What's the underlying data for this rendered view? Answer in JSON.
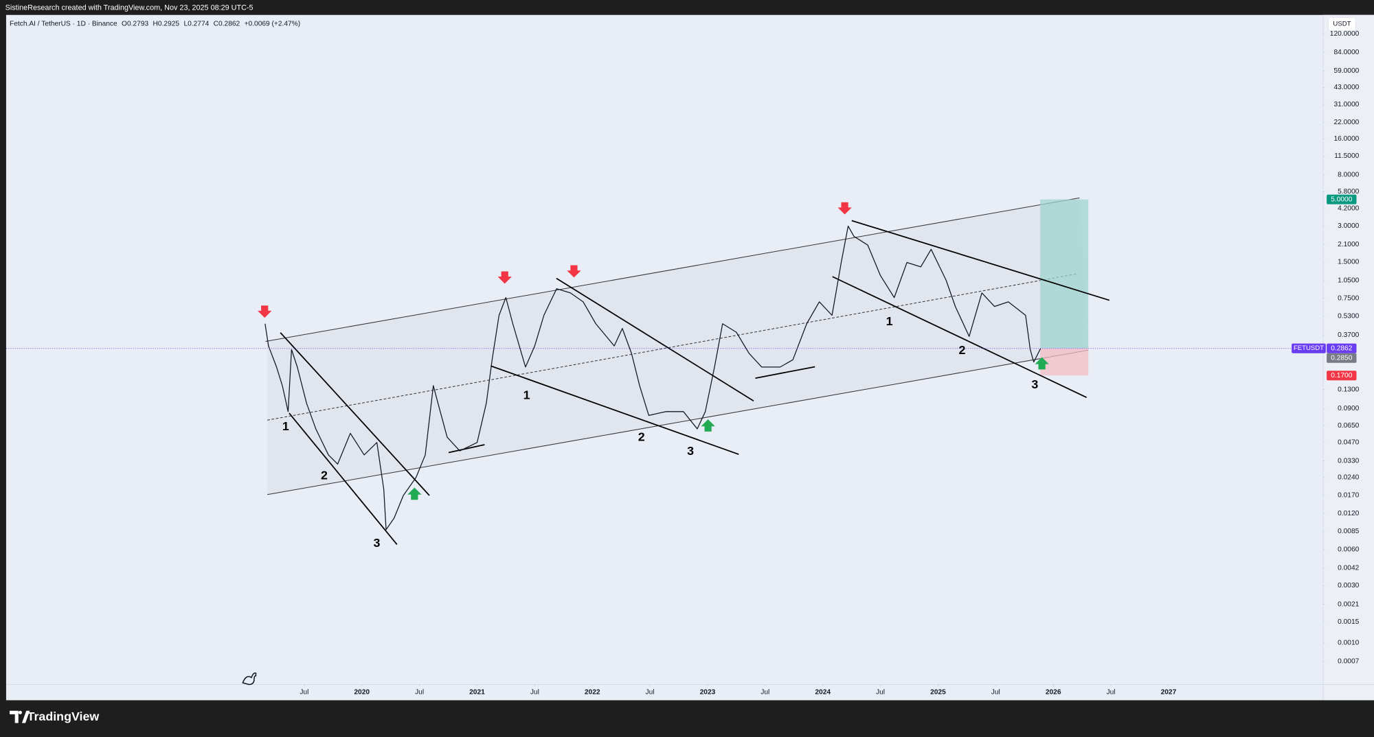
{
  "header": {
    "title": "SistineResearch created with TradingView.com, Nov 23, 2025 08:29 UTC-5"
  },
  "legend": {
    "symbol": "Fetch.AI / TetherUS · 1D · Binance",
    "ohlc": [
      {
        "label": "O",
        "value": 0.2793
      },
      {
        "label": "H",
        "value": 0.2925
      },
      {
        "label": "L",
        "value": 0.2774
      },
      {
        "label": "C",
        "value": 0.2862
      }
    ],
    "change": "+0.0069 (+2.47%)"
  },
  "chart_data": {
    "type": "line",
    "log_scale": true,
    "grid": false,
    "currency": "USDT",
    "symbol_tag": "FETUSDT",
    "xlim": [
      2016.913,
      2028.342
    ],
    "xticks": [
      {
        "value": 2019.5,
        "label": "Jul"
      },
      2020,
      {
        "value": 2020.5,
        "label": "Jul"
      },
      2021,
      {
        "value": 2021.5,
        "label": "Jul"
      },
      2022,
      {
        "value": 2022.5,
        "label": "Jul"
      },
      2023,
      {
        "value": 2023.5,
        "label": "Jul"
      },
      2024,
      {
        "value": 2024.5,
        "label": "Jul"
      },
      2025,
      {
        "value": 2025.5,
        "label": "Jul"
      },
      2026,
      {
        "value": 2026.5,
        "label": "Jul"
      },
      2027
    ],
    "ylim": [
      0.00045,
      173
    ],
    "yticks": [
      {
        "value": 120,
        "label": "120.0000"
      },
      {
        "value": 84,
        "label": "84.0000"
      },
      {
        "value": 59,
        "label": "59.0000"
      },
      {
        "value": 43,
        "label": "43.0000"
      },
      {
        "value": 31,
        "label": "31.0000"
      },
      {
        "value": 22,
        "label": "22.0000"
      },
      {
        "value": 16,
        "label": "16.0000"
      },
      {
        "value": 11.5,
        "label": "11.5000"
      },
      {
        "value": 8,
        "label": "8.0000"
      },
      {
        "value": 5.8,
        "label": "5.8000"
      },
      {
        "value": 4.2,
        "label": "4.2000"
      },
      {
        "value": 3,
        "label": "3.0000"
      },
      {
        "value": 2.1,
        "label": "2.1000"
      },
      {
        "value": 1.5,
        "label": "1.5000"
      },
      {
        "value": 1.05,
        "label": "1.0500"
      },
      {
        "value": 0.75,
        "label": "0.7500"
      },
      {
        "value": 0.53,
        "label": "0.5300"
      },
      {
        "value": 0.37,
        "label": "0.3700"
      },
      {
        "value": 0.13,
        "label": "0.1300"
      },
      {
        "value": 0.09,
        "label": "0.0900"
      },
      {
        "value": 0.065,
        "label": "0.0650"
      },
      {
        "value": 0.047,
        "label": "0.0470"
      },
      {
        "value": 0.033,
        "label": "0.0330"
      },
      {
        "value": 0.024,
        "label": "0.0240"
      },
      {
        "value": 0.017,
        "label": "0.0170"
      },
      {
        "value": 0.012,
        "label": "0.0120"
      },
      {
        "value": 0.0085,
        "label": "0.0085"
      },
      {
        "value": 0.006,
        "label": "0.0060"
      },
      {
        "value": 0.0042,
        "label": "0.0042"
      },
      {
        "value": 0.003,
        "label": "0.0030"
      },
      {
        "value": 0.0021,
        "label": "0.0021"
      },
      {
        "value": 0.0015,
        "label": "0.0015"
      },
      {
        "value": 0.001,
        "label": "0.0010"
      },
      {
        "value": 0.0007,
        "label": "0.0007"
      }
    ],
    "series": [
      {
        "name": "FETUSDT",
        "color": "#131722",
        "x": [
          2019.16,
          2019.19,
          2019.26,
          2019.31,
          2019.36,
          2019.39,
          2019.44,
          2019.52,
          2019.6,
          2019.71,
          2019.79,
          2019.9,
          2020.02,
          2020.13,
          2020.19,
          2020.21,
          2020.28,
          2020.36,
          2020.47,
          2020.55,
          2020.62,
          2020.66,
          2020.74,
          2020.85,
          2021.0,
          2021.08,
          2021.13,
          2021.19,
          2021.25,
          2021.31,
          2021.42,
          2021.5,
          2021.58,
          2021.69,
          2021.81,
          2021.92,
          2022.03,
          2022.19,
          2022.26,
          2022.34,
          2022.41,
          2022.49,
          2022.64,
          2022.79,
          2022.91,
          2022.98,
          2023.06,
          2023.13,
          2023.25,
          2023.36,
          2023.47,
          2023.63,
          2023.74,
          2023.86,
          2023.97,
          2024.08,
          2024.16,
          2024.22,
          2024.27,
          2024.39,
          2024.5,
          2024.62,
          2024.73,
          2024.85,
          2024.94,
          2025.07,
          2025.15,
          2025.27,
          2025.38,
          2025.49,
          2025.61,
          2025.76,
          2025.8,
          2025.83,
          2025.89
        ],
        "values": [
          0.46,
          0.3,
          0.2,
          0.14,
          0.085,
          0.28,
          0.2,
          0.1,
          0.061,
          0.037,
          0.031,
          0.056,
          0.037,
          0.047,
          0.019,
          0.0088,
          0.011,
          0.017,
          0.024,
          0.037,
          0.14,
          0.1,
          0.052,
          0.04,
          0.047,
          0.1,
          0.23,
          0.54,
          0.76,
          0.46,
          0.2,
          0.3,
          0.54,
          0.9,
          0.83,
          0.7,
          0.46,
          0.3,
          0.42,
          0.26,
          0.14,
          0.079,
          0.085,
          0.085,
          0.061,
          0.085,
          0.2,
          0.46,
          0.39,
          0.26,
          0.2,
          0.2,
          0.23,
          0.46,
          0.7,
          0.54,
          1.49,
          3.0,
          2.46,
          2.08,
          1.16,
          0.76,
          1.49,
          1.37,
          1.92,
          1.06,
          0.64,
          0.36,
          0.83,
          0.64,
          0.7,
          0.54,
          0.28,
          0.22,
          0.2862
        ]
      }
    ],
    "price_tags": [
      {
        "value": 5,
        "label": "5.0000",
        "color": "#089981"
      },
      {
        "value": 0.2862,
        "label": "0.2862",
        "color": "#6a3df0"
      },
      {
        "value": 0.285,
        "label": "0.2850",
        "color": "#787b86"
      },
      {
        "value": 0.17,
        "label": "0.1700",
        "color": "#f23645"
      }
    ],
    "wave_labels": [
      "1",
      "2",
      "3",
      "1",
      "2",
      "3",
      "1",
      "2",
      "3"
    ]
  },
  "footer": {
    "brand": "TradingView"
  }
}
